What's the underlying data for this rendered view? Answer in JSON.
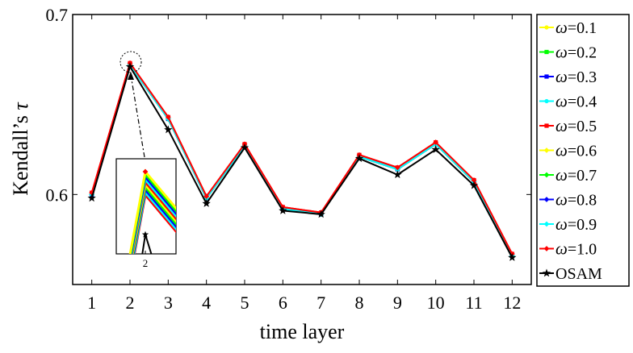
{
  "chart_data": {
    "type": "line",
    "xlabel": "time layer",
    "ylabel_prefix": "Kendall’s ",
    "ylabel_symbol": "τ",
    "x": [
      1,
      2,
      3,
      4,
      5,
      6,
      7,
      8,
      9,
      10,
      11,
      12
    ],
    "xlim": [
      0.5,
      12.5
    ],
    "ylim": [
      0.55,
      0.7
    ],
    "yticks": [
      0.6,
      0.7
    ],
    "ytick_labels": [
      "0.6",
      "0.7"
    ],
    "grid": false,
    "legend_position": "outside-right",
    "legend_symbol": "ω",
    "series": [
      {
        "name": "=0.1",
        "color": "#ffff00",
        "marker": "circle",
        "values": [
          0.6,
          0.672,
          0.642,
          0.598,
          0.627,
          0.592,
          0.589,
          0.621,
          0.614,
          0.628,
          0.607,
          0.566
        ]
      },
      {
        "name": "=0.2",
        "color": "#00ff00",
        "marker": "square",
        "values": [
          0.6,
          0.672,
          0.642,
          0.598,
          0.627,
          0.592,
          0.589,
          0.621,
          0.614,
          0.628,
          0.607,
          0.566
        ]
      },
      {
        "name": "=0.3",
        "color": "#0000ff",
        "marker": "square",
        "values": [
          0.6,
          0.672,
          0.642,
          0.598,
          0.627,
          0.592,
          0.589,
          0.621,
          0.614,
          0.628,
          0.607,
          0.566
        ]
      },
      {
        "name": "=0.4",
        "color": "#00ffff",
        "marker": "circle",
        "values": [
          0.6,
          0.672,
          0.642,
          0.598,
          0.627,
          0.592,
          0.589,
          0.621,
          0.614,
          0.628,
          0.607,
          0.566
        ]
      },
      {
        "name": "=0.5",
        "color": "#ff0000",
        "marker": "square",
        "values": [
          0.601,
          0.673,
          0.643,
          0.599,
          0.628,
          0.593,
          0.59,
          0.622,
          0.615,
          0.629,
          0.608,
          0.567
        ]
      },
      {
        "name": "=0.6",
        "color": "#ffff00",
        "marker": "diamond",
        "values": [
          0.6,
          0.672,
          0.642,
          0.598,
          0.627,
          0.592,
          0.589,
          0.621,
          0.614,
          0.628,
          0.607,
          0.566
        ]
      },
      {
        "name": "=0.7",
        "color": "#00ff00",
        "marker": "diamond",
        "values": [
          0.6,
          0.672,
          0.642,
          0.598,
          0.627,
          0.592,
          0.589,
          0.621,
          0.614,
          0.628,
          0.607,
          0.566
        ]
      },
      {
        "name": "=0.8",
        "color": "#0000ff",
        "marker": "diamond",
        "values": [
          0.6,
          0.672,
          0.642,
          0.598,
          0.627,
          0.592,
          0.589,
          0.621,
          0.614,
          0.628,
          0.607,
          0.566
        ]
      },
      {
        "name": "=0.9",
        "color": "#00ffff",
        "marker": "diamond",
        "values": [
          0.6,
          0.672,
          0.642,
          0.598,
          0.627,
          0.592,
          0.589,
          0.621,
          0.614,
          0.628,
          0.607,
          0.566
        ]
      },
      {
        "name": "=1.0",
        "color": "#ff0000",
        "marker": "diamond",
        "values": [
          0.601,
          0.673,
          0.643,
          0.599,
          0.628,
          0.593,
          0.59,
          0.622,
          0.615,
          0.629,
          0.608,
          0.567
        ]
      },
      {
        "name": "OSAM",
        "color": "#000000",
        "marker": "star",
        "values": [
          0.598,
          0.671,
          0.636,
          0.595,
          0.626,
          0.591,
          0.589,
          0.62,
          0.611,
          0.625,
          0.605,
          0.565
        ]
      }
    ],
    "inset": {
      "note": "zoom of peak at x = 2",
      "xtick_label": "2"
    }
  }
}
